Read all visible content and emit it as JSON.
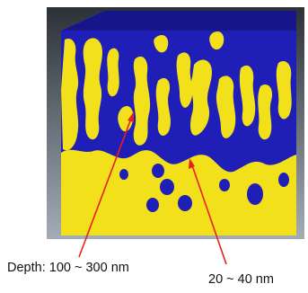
{
  "colors": {
    "background_top": "#2c3138",
    "background_bottom": "#a4acb6",
    "pore": "#1f1fb8",
    "pore_side": "#16168a",
    "material": "#f2e11a",
    "material_side": "#d9c716",
    "arrow": "#e8201c"
  },
  "annotations": {
    "depth_label": "Depth: 100 ~ 300 nm",
    "width_label": "20 ~ 40 nm"
  }
}
